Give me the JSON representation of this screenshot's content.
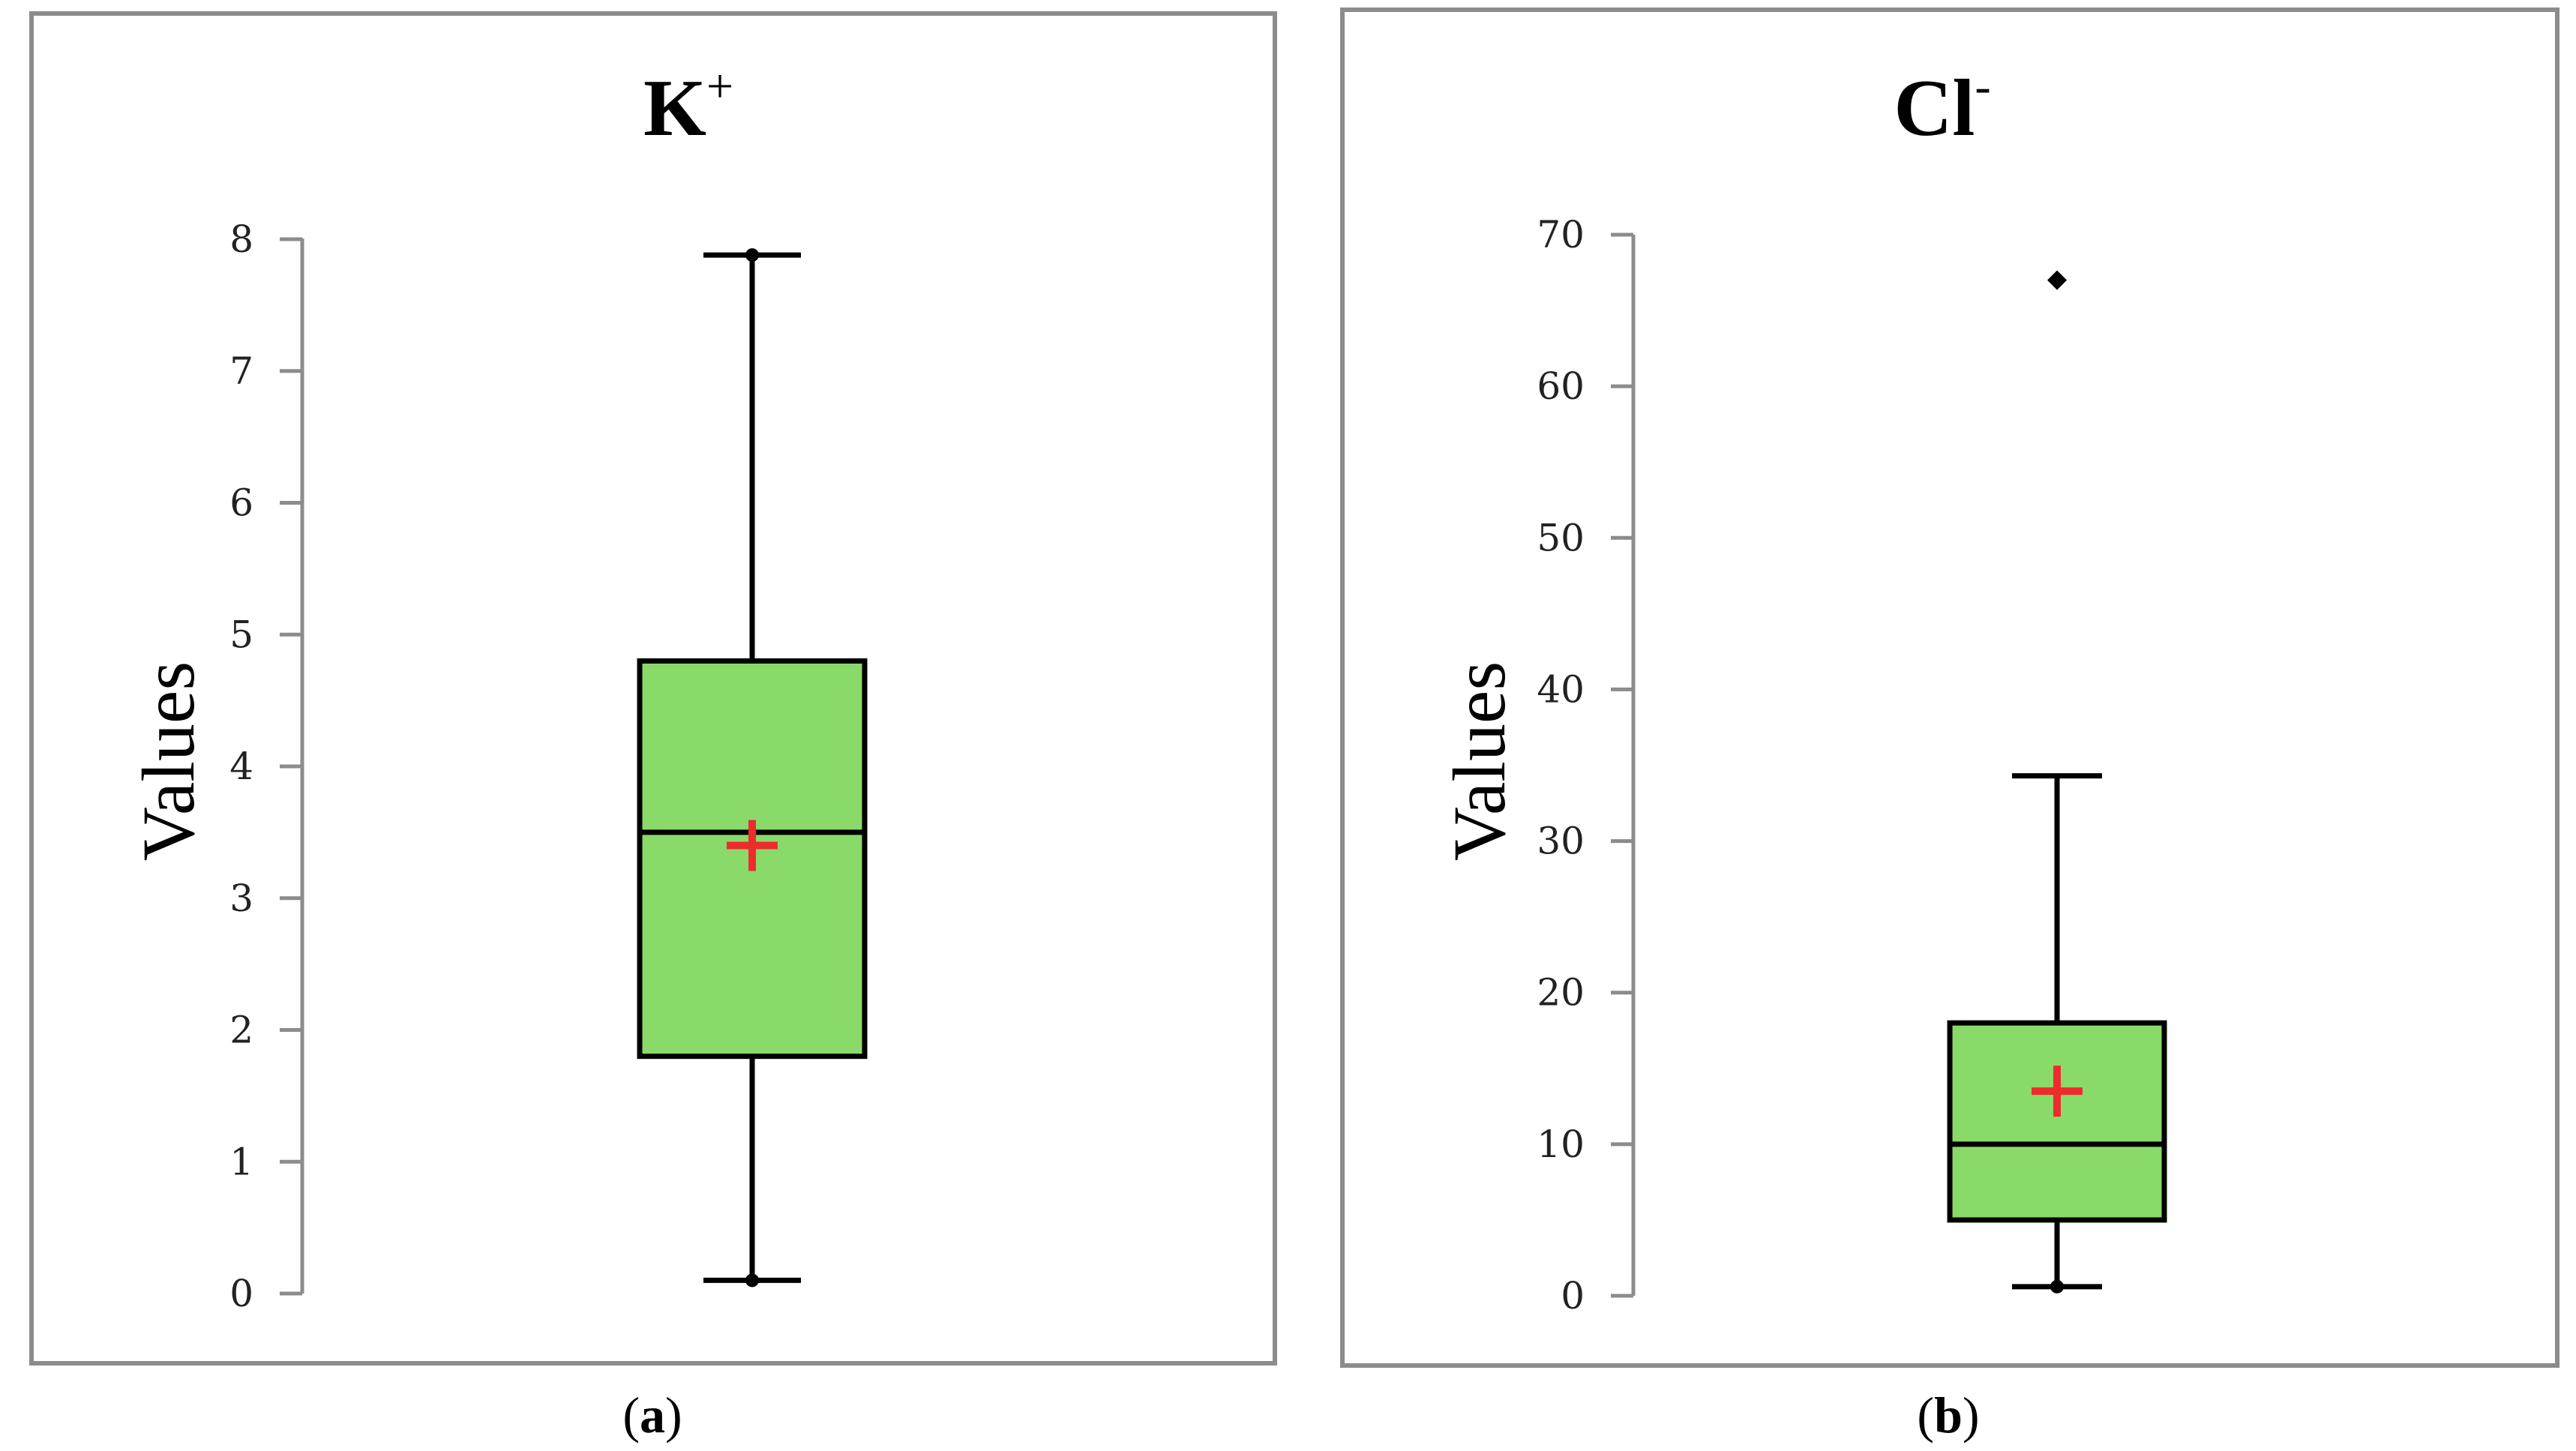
{
  "colors": {
    "box_fill": "#8ada6a",
    "mean_marker": "#ee2c2c",
    "frame": "#8c8c8c"
  },
  "chart_data": [
    {
      "type": "box",
      "title": "K",
      "title_superscript": "+",
      "ylabel": "Values",
      "ylim": [
        0,
        8
      ],
      "yticks": [
        "0",
        "1",
        "2",
        "3",
        "4",
        "5",
        "6",
        "7",
        "8"
      ],
      "stats": {
        "min": 0.1,
        "q1": 1.8,
        "median": 3.5,
        "q3": 4.8,
        "max": 7.88,
        "mean": 3.4,
        "outliers": []
      },
      "caption": {
        "open": "(",
        "letter": "a",
        "close": ")"
      }
    },
    {
      "type": "box",
      "title": "Cl",
      "title_superscript": "-",
      "ylabel": "Values",
      "ylim": [
        0,
        70
      ],
      "yticks": [
        "0",
        "10",
        "20",
        "30",
        "40",
        "50",
        "60",
        "70"
      ],
      "stats": {
        "min": 0.6,
        "q1": 5,
        "median": 10,
        "q3": 18,
        "max": 34.3,
        "mean": 13.5,
        "outliers": [
          67
        ]
      },
      "caption": {
        "open": "(",
        "letter": "b",
        "close": ")"
      }
    }
  ]
}
